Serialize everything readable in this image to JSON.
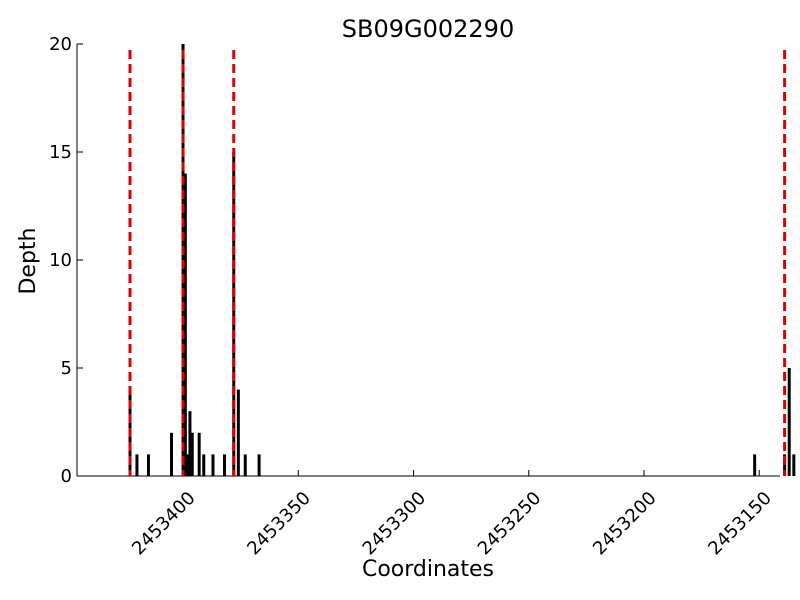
{
  "chart_data": {
    "type": "bar",
    "title": "SB09G002290",
    "xlabel": "Coordinates",
    "ylabel": "Depth",
    "xlim": [
      2453446,
      2453141
    ],
    "x_reversed": true,
    "ylim": [
      0,
      20
    ],
    "x_ticks": [
      2453400,
      2453350,
      2453300,
      2453250,
      2453200,
      2453150
    ],
    "y_ticks": [
      0,
      5,
      10,
      15,
      20
    ],
    "grid": false,
    "colors": {
      "bars": "#000000",
      "markers": "#dd0000"
    },
    "markers": [
      2453423,
      2453400,
      2453378,
      2453139
    ],
    "bars": [
      {
        "x": 2453423,
        "y": 4
      },
      {
        "x": 2453420,
        "y": 1
      },
      {
        "x": 2453415,
        "y": 1
      },
      {
        "x": 2453405,
        "y": 2
      },
      {
        "x": 2453400,
        "y": 20
      },
      {
        "x": 2453399,
        "y": 14
      },
      {
        "x": 2453398,
        "y": 1
      },
      {
        "x": 2453397,
        "y": 3
      },
      {
        "x": 2453396,
        "y": 2
      },
      {
        "x": 2453393,
        "y": 2
      },
      {
        "x": 2453391,
        "y": 1
      },
      {
        "x": 2453387,
        "y": 1
      },
      {
        "x": 2453382,
        "y": 1
      },
      {
        "x": 2453378,
        "y": 15
      },
      {
        "x": 2453376,
        "y": 4
      },
      {
        "x": 2453373,
        "y": 1
      },
      {
        "x": 2453367,
        "y": 1
      },
      {
        "x": 2453152,
        "y": 1
      },
      {
        "x": 2453139,
        "y": 1
      },
      {
        "x": 2453137,
        "y": 5
      },
      {
        "x": 2453135,
        "y": 1
      }
    ]
  }
}
